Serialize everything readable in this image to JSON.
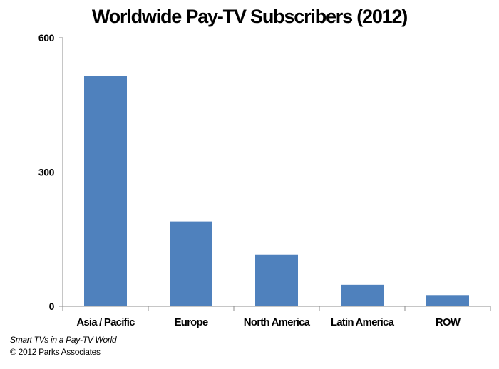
{
  "chart_data": {
    "type": "bar",
    "title": "Worldwide Pay-TV Subscribers (2012)",
    "categories": [
      "Asia / Pacific",
      "Europe",
      "North America",
      "Latin America",
      "ROW"
    ],
    "values": [
      515,
      190,
      115,
      48,
      25
    ],
    "ylim": [
      0,
      600
    ],
    "yticks": [
      0,
      300,
      600
    ],
    "bar_color": "#4F81BD",
    "grid": false,
    "legend": "none"
  },
  "footer": {
    "source": "Smart TVs in a Pay-TV World",
    "copyright": "© 2012 Parks Associates"
  }
}
